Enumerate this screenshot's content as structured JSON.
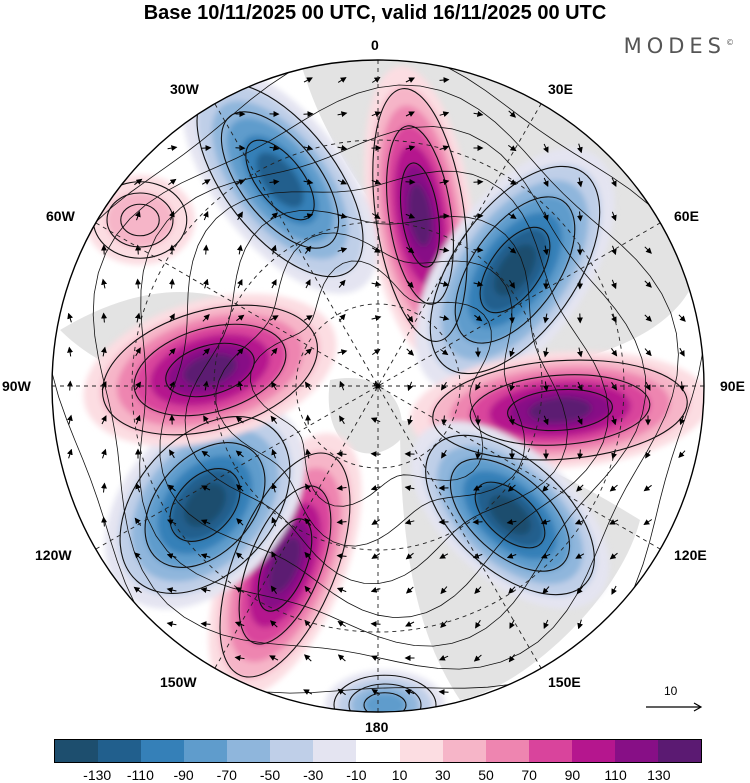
{
  "title": "Base 10/11/2025 00 UTC, valid 16/11/2025 00 UTC",
  "brand": "MODES",
  "brand_mark": "©",
  "longitude_labels": {
    "lon_0": "0",
    "lon_30e": "30E",
    "lon_60e": "60E",
    "lon_90e": "90E",
    "lon_120e": "120E",
    "lon_150e": "150E",
    "lon_180": "180",
    "lon_150w": "150W",
    "lon_120w": "120W",
    "lon_90w": "90W",
    "lon_60w": "60W",
    "lon_30w": "30W"
  },
  "reference_vector": {
    "label": "10"
  },
  "colorbar": {
    "colors": [
      "#1d4e6e",
      "#215f8d",
      "#3580b8",
      "#5f9ccc",
      "#8fb6dc",
      "#bfcfe8",
      "#e4e4f1",
      "#ffffff",
      "#fcdde2",
      "#f6b5c8",
      "#ee85b0",
      "#d9449c",
      "#b5168e",
      "#870f86",
      "#5b1a72"
    ],
    "tick_labels": [
      "-130",
      "-110",
      "-90",
      "-70",
      "-50",
      "-30",
      "-10",
      "10",
      "30",
      "50",
      "70",
      "90",
      "110",
      "130"
    ]
  },
  "chart_data": {
    "type": "heatmap",
    "projection": "north polar stereographic",
    "title": "Base 10/11/2025 00 UTC, valid 16/11/2025 00 UTC",
    "variable_units": "anomaly, shaded levels -130 to 130 step 20",
    "levels": [
      -130,
      -110,
      -90,
      -70,
      -50,
      -30,
      -10,
      10,
      30,
      50,
      70,
      90,
      110,
      130
    ],
    "lobes": [
      {
        "sign": "positive",
        "longitude": "10E",
        "peak_class": ">130"
      },
      {
        "sign": "negative",
        "longitude": "35W",
        "peak_class": "-130 to -110"
      },
      {
        "sign": "negative",
        "longitude": "50E",
        "peak_class": "<-130"
      },
      {
        "sign": "positive",
        "longitude": "95E",
        "peak_class": ">130"
      },
      {
        "sign": "negative",
        "longitude": "130E",
        "peak_class": "<-130"
      },
      {
        "sign": "negative",
        "longitude": "180",
        "peak_class": "-70 to -50"
      },
      {
        "sign": "positive",
        "longitude": "155W",
        "peak_class": ">130"
      },
      {
        "sign": "negative",
        "longitude": "120W",
        "peak_class": "<-130"
      },
      {
        "sign": "positive",
        "longitude": "85W",
        "peak_class": ">130"
      },
      {
        "sign": "positive",
        "longitude": "60W",
        "peak_class": "30 to 50"
      }
    ]
  }
}
